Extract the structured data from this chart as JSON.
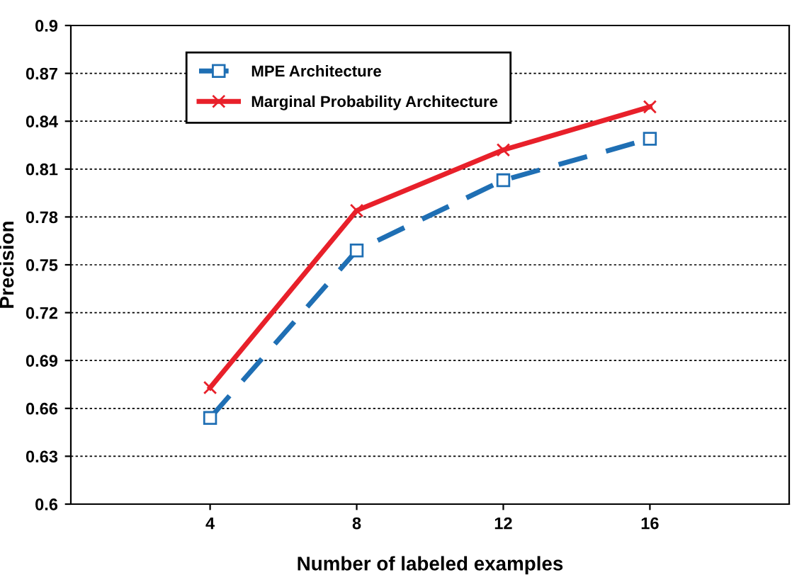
{
  "chart_data": {
    "type": "line",
    "xlabel": "Number of labeled examples",
    "ylabel": "Precision",
    "categories": [
      "4",
      "8",
      "12",
      "16"
    ],
    "series": [
      {
        "name": "MPE Architecture",
        "color": "#1f6fb4",
        "values": [
          0.654,
          0.759,
          0.803,
          0.829
        ],
        "marker": "square",
        "line_style": "dashed"
      },
      {
        "name": "Marginal Probability Architecture",
        "color": "#e8202a",
        "values": [
          0.673,
          0.784,
          0.822,
          0.849
        ],
        "marker": "cross",
        "line_style": "solid"
      }
    ],
    "ylim": [
      0.6,
      0.9
    ],
    "yticks": [
      {
        "value": 0.6,
        "label": "0.6"
      },
      0.63,
      0.66,
      0.69,
      0.72,
      0.75,
      0.78,
      0.81,
      0.84,
      0.87,
      {
        "value": 0.9,
        "label": "0.9"
      }
    ],
    "grid": "y",
    "legend": "top left"
  }
}
